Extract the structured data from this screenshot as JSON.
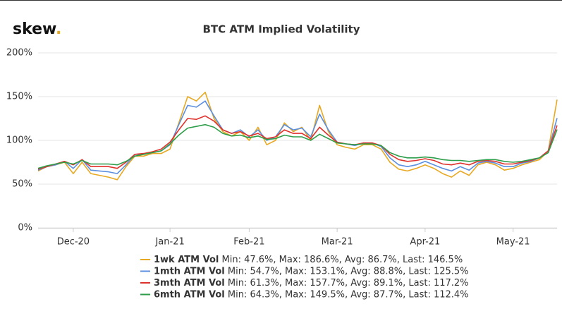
{
  "logo": {
    "text": "skew",
    "dot": "."
  },
  "chart_data": {
    "type": "line",
    "title": "BTC ATM Implied Volatility",
    "categories": [
      null,
      null,
      null,
      null,
      "Dec-20",
      null,
      null,
      null,
      null,
      null,
      null,
      null,
      null,
      null,
      null,
      "Jan-21",
      null,
      null,
      null,
      null,
      null,
      null,
      null,
      null,
      "Feb-21",
      null,
      null,
      null,
      null,
      null,
      null,
      null,
      null,
      null,
      "Mar-21",
      null,
      null,
      null,
      null,
      null,
      null,
      null,
      null,
      null,
      "Apr-21",
      null,
      null,
      null,
      null,
      null,
      null,
      null,
      null,
      null,
      "May-21",
      null,
      null,
      null,
      null,
      null
    ],
    "ylim": [
      0,
      200
    ],
    "yticks": [
      {
        "value": 0,
        "label": "0%"
      },
      {
        "value": 50,
        "label": "50%"
      },
      {
        "value": 100,
        "label": "100%"
      },
      {
        "value": 150,
        "label": "150%"
      },
      {
        "value": 200,
        "label": "200%"
      }
    ],
    "grid": true,
    "series": [
      {
        "name": "1wk ATM Vol",
        "stats": "Min: 47.6%, Max: 186.6%, Avg: 86.7%, Last: 146.5%",
        "color": "#e8a922",
        "values": [
          65,
          70,
          72,
          75,
          62,
          75,
          62,
          60,
          58,
          55,
          70,
          82,
          82,
          85,
          85,
          90,
          120,
          150,
          145,
          155,
          125,
          110,
          105,
          110,
          100,
          115,
          95,
          100,
          120,
          110,
          115,
          100,
          140,
          110,
          95,
          92,
          90,
          95,
          95,
          90,
          75,
          67,
          65,
          68,
          72,
          68,
          62,
          58,
          65,
          60,
          72,
          75,
          72,
          66,
          68,
          72,
          75,
          78,
          88,
          146.5
        ]
      },
      {
        "name": "1mth ATM Vol",
        "stats": "Min: 54.7%, Max: 153.1%, Avg: 88.8%, Last: 125.5%",
        "color": "#5b8fe0",
        "values": [
          66,
          70,
          72,
          76,
          68,
          78,
          66,
          65,
          64,
          62,
          72,
          84,
          84,
          86,
          88,
          95,
          118,
          140,
          138,
          145,
          128,
          112,
          108,
          112,
          104,
          112,
          100,
          104,
          118,
          112,
          114,
          104,
          130,
          112,
          98,
          96,
          94,
          97,
          97,
          93,
          80,
          72,
          70,
          72,
          76,
          72,
          68,
          65,
          70,
          66,
          74,
          76,
          74,
          70,
          70,
          74,
          76,
          80,
          88,
          125.5
        ]
      },
      {
        "name": "3mth ATM Vol",
        "stats": "Min: 61.3%, Max: 157.7%, Avg: 89.1%, Last: 117.2%",
        "color": "#e0322c",
        "values": [
          67,
          70,
          73,
          76,
          72,
          78,
          70,
          70,
          70,
          68,
          75,
          84,
          85,
          87,
          90,
          98,
          112,
          125,
          124,
          128,
          122,
          112,
          108,
          110,
          105,
          108,
          102,
          104,
          112,
          108,
          108,
          102,
          115,
          106,
          98,
          96,
          95,
          97,
          97,
          94,
          84,
          78,
          76,
          77,
          79,
          77,
          73,
          72,
          74,
          72,
          76,
          77,
          76,
          73,
          73,
          75,
          77,
          80,
          88,
          117.2
        ]
      },
      {
        "name": "6mth ATM Vol",
        "stats": "Min: 64.3%, Max: 149.5%, Avg: 87.7%, Last: 112.4%",
        "color": "#2e9e4a",
        "values": [
          68,
          71,
          73,
          75,
          73,
          77,
          73,
          73,
          73,
          72,
          76,
          82,
          84,
          86,
          88,
          96,
          106,
          114,
          116,
          118,
          115,
          108,
          105,
          106,
          103,
          105,
          101,
          102,
          106,
          104,
          104,
          100,
          107,
          102,
          97,
          96,
          95,
          96,
          96,
          94,
          86,
          82,
          80,
          80,
          81,
          80,
          78,
          77,
          77,
          76,
          77,
          78,
          78,
          76,
          75,
          76,
          78,
          80,
          86,
          112.4
        ]
      }
    ]
  }
}
